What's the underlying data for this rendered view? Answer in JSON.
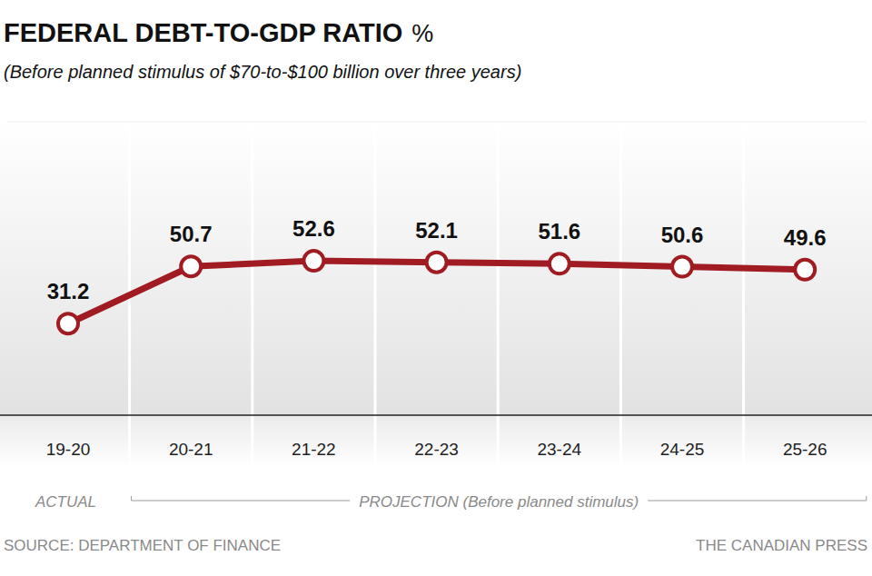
{
  "chart_data": {
    "type": "line",
    "title": "FEDERAL DEBT-TO-GDP RATIO",
    "ylabel": "%",
    "subtitle": "(Before planned stimulus of $70-to-$100 billion over three years)",
    "categories": [
      "19-20",
      "20-21",
      "21-22",
      "22-23",
      "23-24",
      "24-25",
      "25-26"
    ],
    "values": [
      31.2,
      50.7,
      52.6,
      52.1,
      51.6,
      50.6,
      49.6
    ],
    "color": "#a01c22",
    "marker": "circle",
    "ylim": [
      0,
      100
    ],
    "grid": false,
    "data_labels": true,
    "tick_labels": "x",
    "annotations": [
      "ACTUAL",
      "PROJECTION (Before planned stimulus)",
      "SOURCE: DEPARTMENT OF FINANCE",
      "THE CANADIAN PRESS"
    ]
  }
}
